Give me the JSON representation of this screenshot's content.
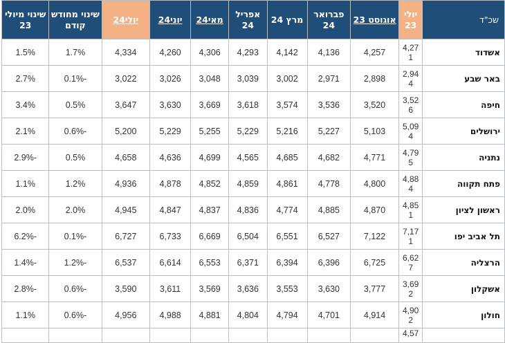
{
  "headers": {
    "city": "שכ\"ד",
    "jul23": "יולי 23",
    "aug23": "אוגוסט 23",
    "feb24": "פברואר 24",
    "mar24": "מרץ 24",
    "apr24": "אפריל 24",
    "may24": "מאי24",
    "jun24": "יוני24",
    "jul24": "יולי24",
    "mom": "שינוי מחודש קודם",
    "yoy": "שינוי מיולי 23"
  },
  "rows": [
    {
      "city": "אשדוד",
      "jul23": "4,271",
      "aug23": "4,257",
      "feb24": "4,136",
      "mar24": "4,142",
      "apr24": "4,293",
      "may24": "4,306",
      "jun24": "4,260",
      "jul24": "4,334",
      "mom": "1.7%",
      "yoy": "1.5%"
    },
    {
      "city": "באר שבע",
      "jul23": "2,944",
      "aug23": "2,898",
      "feb24": "2,971",
      "mar24": "3,002",
      "apr24": "3,039",
      "may24": "3,048",
      "jun24": "3,026",
      "jul24": "3,022",
      "mom": "-0.1%",
      "yoy": "2.7%"
    },
    {
      "city": "חיפה",
      "jul23": "3,526",
      "aug23": "3,520",
      "feb24": "3,536",
      "mar24": "3,574",
      "apr24": "3,618",
      "may24": "3,669",
      "jun24": "3,630",
      "jul24": "3,647",
      "mom": "0.5%",
      "yoy": "3.4%"
    },
    {
      "city": "ירושלים",
      "jul23": "5,094",
      "aug23": "5,103",
      "feb24": "5,227",
      "mar24": "5,216",
      "apr24": "5,229",
      "may24": "5,255",
      "jun24": "5,229",
      "jul24": "5,200",
      "mom": "-0.6%",
      "yoy": "2.1%"
    },
    {
      "city": "נתניה",
      "jul23": "4,795",
      "aug23": "4,771",
      "feb24": "4,682",
      "mar24": "4,685",
      "apr24": "4,565",
      "may24": "4,699",
      "jun24": "4,636",
      "jul24": "4,658",
      "mom": "0.5%",
      "yoy": "-2.9%"
    },
    {
      "city": "פתח תקווה",
      "jul23": "4,884",
      "aug23": "4,800",
      "feb24": "4,778",
      "mar24": "4,861",
      "apr24": "4,859",
      "may24": "4,852",
      "jun24": "4,878",
      "jul24": "4,936",
      "mom": "1.2%",
      "yoy": "1.1%"
    },
    {
      "city": "ראשון לציון",
      "jul23": "4,851",
      "aug23": "4,870",
      "feb24": "4,885",
      "mar24": "4,774",
      "apr24": "4,836",
      "may24": "4,837",
      "jun24": "4,847",
      "jul24": "4,945",
      "mom": "2.0%",
      "yoy": "2.0%"
    },
    {
      "city": "תל אביב יפו",
      "jul23": "7,171",
      "aug23": "7,122",
      "feb24": "6,527",
      "mar24": "6,551",
      "apr24": "6,504",
      "may24": "6,669",
      "jun24": "6,733",
      "jul24": "6,727",
      "mom": "-0.1%",
      "yoy": "-6.2%"
    },
    {
      "city": "הרצליה",
      "jul23": "6,627",
      "aug23": "6,725",
      "feb24": "6,396",
      "mar24": "6,394",
      "apr24": "6,371",
      "may24": "6,553",
      "jun24": "6,614",
      "jul24": "6,537",
      "mom": "-1.2%",
      "yoy": "-1.4%"
    },
    {
      "city": "אשקלון",
      "jul23": "3,692",
      "aug23": "3,777",
      "feb24": "3,630",
      "mar24": "3,553",
      "apr24": "3,636",
      "may24": "3,569",
      "jun24": "3,611",
      "jul24": "3,590",
      "mom": "-0.6%",
      "yoy": "-2.8%"
    },
    {
      "city": "חולון",
      "jul23": "4,902",
      "aug23": "4,914",
      "feb24": "4,701",
      "mar24": "4,794",
      "apr24": "4,804",
      "may24": "4,881",
      "jun24": "4,988",
      "jul24": "4,956",
      "mom": "-0.6%",
      "yoy": "1.1%"
    },
    {
      "city": "",
      "jul23": "4,57",
      "aug23": "",
      "feb24": "",
      "mar24": "",
      "apr24": "",
      "may24": "",
      "jun24": "",
      "jul24": "",
      "mom": "",
      "yoy": ""
    }
  ]
}
